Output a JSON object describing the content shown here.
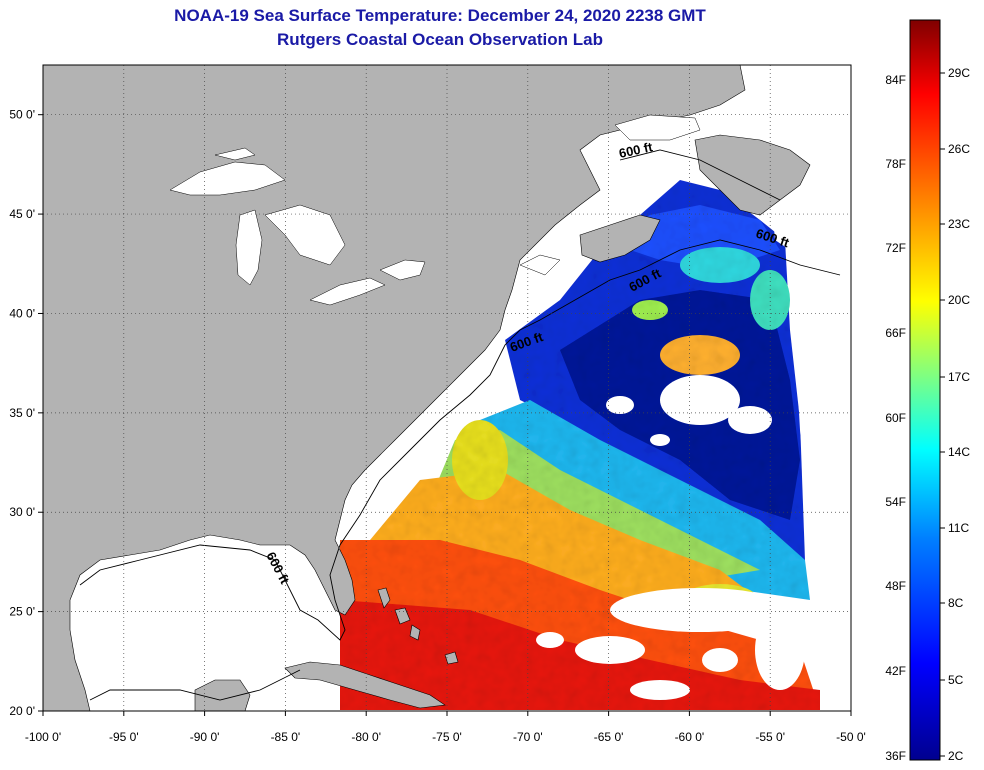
{
  "title": "NOAA-19 Sea Surface Temperature:  December 24, 2020 2238 GMT",
  "subtitle": "Rutgers Coastal Ocean Observation Lab",
  "map": {
    "lon_range": [
      -100,
      -50
    ],
    "lat_range": [
      20,
      52.5
    ],
    "lon_ticks": [
      "-100 0'",
      "-95 0'",
      "-90 0'",
      "-85 0'",
      "-80 0'",
      "-75 0'",
      "-70 0'",
      "-65 0'",
      "-60 0'",
      "-55 0'",
      "-50 0'"
    ],
    "lat_ticks": [
      "20 0'",
      "25 0'",
      "30 0'",
      "35 0'",
      "40 0'",
      "45 0'",
      "50 0'"
    ],
    "isobath_labels": [
      "600 ft",
      "600 ft",
      "600 ft",
      "600 ft",
      "600 ft"
    ],
    "colors": {
      "land": "#b3b3b3",
      "cloud_or_nodata": "#ffffff",
      "frame": "#000000"
    }
  },
  "colorbar": {
    "fahrenheit_labels": [
      "84F",
      "78F",
      "72F",
      "66F",
      "60F",
      "54F",
      "48F",
      "42F",
      "36F"
    ],
    "celsius_labels": [
      "29C",
      "26C",
      "23C",
      "20C",
      "17C",
      "14C",
      "11C",
      "8C",
      "5C",
      "2C"
    ],
    "range_c": [
      2,
      31
    ],
    "colors": [
      "#00008f",
      "#0000ff",
      "#0080ff",
      "#00ffff",
      "#80ff80",
      "#ffff00",
      "#ff8000",
      "#ff0000",
      "#800000"
    ]
  }
}
